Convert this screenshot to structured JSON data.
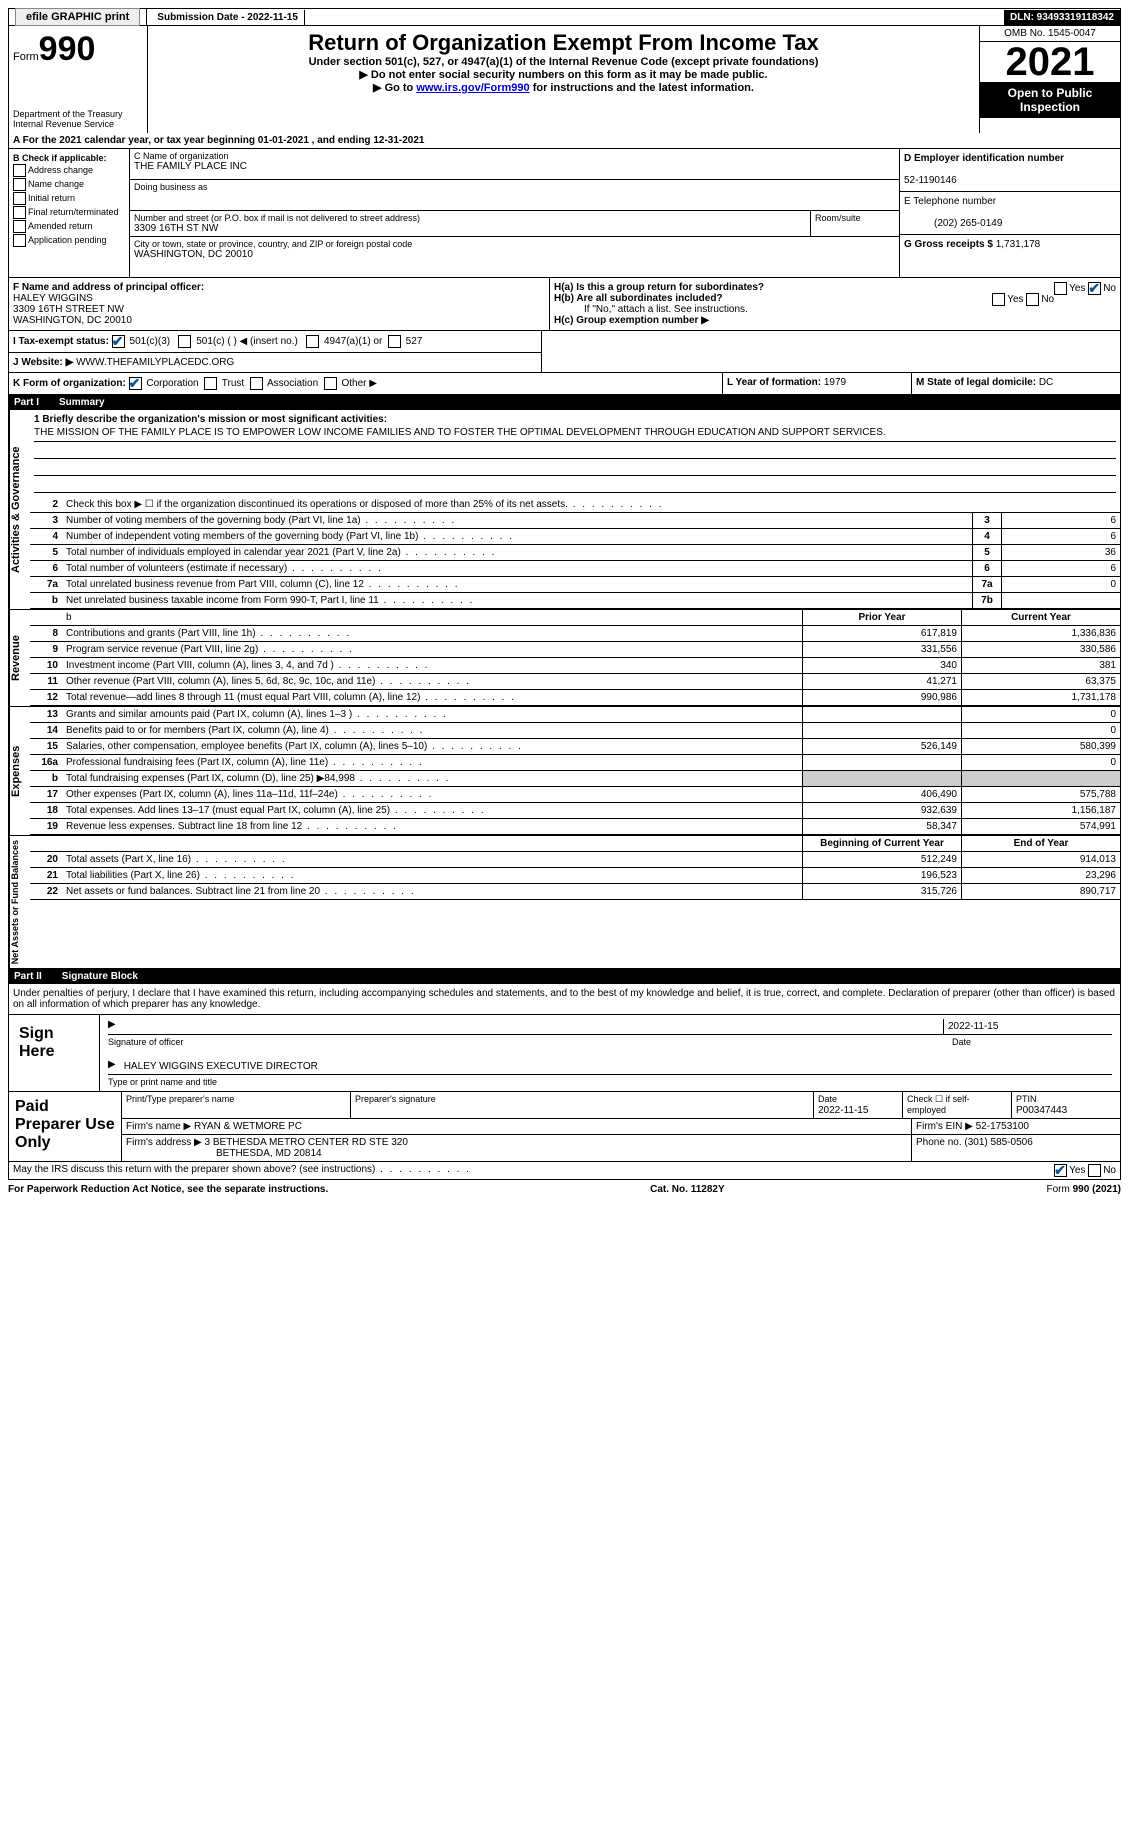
{
  "colors": {
    "text": "#000000",
    "bg": "#ffffff",
    "link": "#0000cc",
    "header_bg": "#000000",
    "header_fg": "#ffffff",
    "check": "#0b5394",
    "shade": "#cccccc"
  },
  "top": {
    "efile": "efile GRAPHIC print",
    "submission": "Submission Date - 2022-11-15",
    "dln": "DLN: 93493319118342"
  },
  "header": {
    "form_prefix": "Form",
    "form_number": "990",
    "dept": "Department of the Treasury",
    "irs": "Internal Revenue Service",
    "title": "Return of Organization Exempt From Income Tax",
    "sub1": "Under section 501(c), 527, or 4947(a)(1) of the Internal Revenue Code (except private foundations)",
    "sub2": "▶ Do not enter social security numbers on this form as it may be made public.",
    "sub3_prefix": "▶ Go to ",
    "sub3_link": "www.irs.gov/Form990",
    "sub3_suffix": " for instructions and the latest information.",
    "omb": "OMB No. 1545-0047",
    "year": "2021",
    "open": "Open to Public Inspection"
  },
  "lineA": "A For the 2021 calendar year, or tax year beginning 01-01-2021   , and ending 12-31-2021",
  "boxB": {
    "label": "B Check if applicable:",
    "items": [
      "Address change",
      "Name change",
      "Initial return",
      "Final return/terminated",
      "Amended return",
      "Application pending"
    ]
  },
  "boxC": {
    "name_lbl": "C Name of organization",
    "name": "THE FAMILY PLACE INC",
    "dba_lbl": "Doing business as",
    "dba": "",
    "street_lbl": "Number and street (or P.O. box if mail is not delivered to street address)",
    "street": "3309 16TH ST NW",
    "room_lbl": "Room/suite",
    "city_lbl": "City or town, state or province, country, and ZIP or foreign postal code",
    "city": "WASHINGTON, DC  20010"
  },
  "boxD": {
    "ein_lbl": "D Employer identification number",
    "ein": "52-1190146",
    "phone_lbl": "E Telephone number",
    "phone": "(202) 265-0149",
    "gross_lbl": "G Gross receipts $",
    "gross": "1,731,178"
  },
  "boxF": {
    "lbl": "F Name and address of principal officer:",
    "name": "HALEY WIGGINS",
    "addr1": "3309 16TH STREET NW",
    "addr2": "WASHINGTON, DC  20010"
  },
  "boxH": {
    "ha": "H(a)  Is this a group return for subordinates?",
    "ha_no": true,
    "hb": "H(b)  Are all subordinates included?",
    "hb_note": "If \"No,\" attach a list. See instructions.",
    "hc": "H(c)  Group exemption number ▶"
  },
  "lineI": {
    "lbl": "I    Tax-exempt status:",
    "opt1": "501(c)(3)",
    "opt2": "501(c) (  ) ◀ (insert no.)",
    "opt3": "4947(a)(1) or",
    "opt4": "527",
    "checked": 1
  },
  "lineJ": {
    "lbl": "J    Website: ▶",
    "val": "WWW.THEFAMILYPLACEDC.ORG"
  },
  "lineK": {
    "lbl": "K Form of organization:",
    "opts": [
      "Corporation",
      "Trust",
      "Association",
      "Other ▶"
    ],
    "checked": 0
  },
  "lineL": {
    "lbl": "L Year of formation:",
    "val": "1979"
  },
  "lineM": {
    "lbl": "M State of legal domicile:",
    "val": "DC"
  },
  "part1": {
    "header": "Part I",
    "title": "Summary"
  },
  "mission": {
    "lbl": "1   Briefly describe the organization's mission or most significant activities:",
    "text": "THE MISSION OF THE FAMILY PLACE IS TO EMPOWER LOW INCOME FAMILIES AND TO FOSTER THE OPTIMAL DEVELOPMENT THROUGH EDUCATION AND SUPPORT SERVICES."
  },
  "gov_label": "Activities & Governance",
  "gov_lines": [
    {
      "n": "2",
      "t": "Check this box ▶ ☐ if the organization discontinued its operations or disposed of more than 25% of its net assets.",
      "box": "",
      "val": ""
    },
    {
      "n": "3",
      "t": "Number of voting members of the governing body (Part VI, line 1a)",
      "box": "3",
      "val": "6"
    },
    {
      "n": "4",
      "t": "Number of independent voting members of the governing body (Part VI, line 1b)",
      "box": "4",
      "val": "6"
    },
    {
      "n": "5",
      "t": "Total number of individuals employed in calendar year 2021 (Part V, line 2a)",
      "box": "5",
      "val": "36"
    },
    {
      "n": "6",
      "t": "Total number of volunteers (estimate if necessary)",
      "box": "6",
      "val": "6"
    },
    {
      "n": "7a",
      "t": "Total unrelated business revenue from Part VIII, column (C), line 12",
      "box": "7a",
      "val": "0"
    },
    {
      "n": "b",
      "t": "Net unrelated business taxable income from Form 990-T, Part I, line 11",
      "box": "7b",
      "val": ""
    }
  ],
  "rev_label": "Revenue",
  "rev_header": {
    "prior": "Prior Year",
    "curr": "Current Year"
  },
  "rev_lines": [
    {
      "n": "8",
      "t": "Contributions and grants (Part VIII, line 1h)",
      "p": "617,819",
      "c": "1,336,836"
    },
    {
      "n": "9",
      "t": "Program service revenue (Part VIII, line 2g)",
      "p": "331,556",
      "c": "330,586"
    },
    {
      "n": "10",
      "t": "Investment income (Part VIII, column (A), lines 3, 4, and 7d )",
      "p": "340",
      "c": "381"
    },
    {
      "n": "11",
      "t": "Other revenue (Part VIII, column (A), lines 5, 6d, 8c, 9c, 10c, and 11e)",
      "p": "41,271",
      "c": "63,375"
    },
    {
      "n": "12",
      "t": "Total revenue—add lines 8 through 11 (must equal Part VIII, column (A), line 12)",
      "p": "990,986",
      "c": "1,731,178"
    }
  ],
  "exp_label": "Expenses",
  "exp_lines": [
    {
      "n": "13",
      "t": "Grants and similar amounts paid (Part IX, column (A), lines 1–3 )",
      "p": "",
      "c": "0"
    },
    {
      "n": "14",
      "t": "Benefits paid to or for members (Part IX, column (A), line 4)",
      "p": "",
      "c": "0"
    },
    {
      "n": "15",
      "t": "Salaries, other compensation, employee benefits (Part IX, column (A), lines 5–10)",
      "p": "526,149",
      "c": "580,399"
    },
    {
      "n": "16a",
      "t": "Professional fundraising fees (Part IX, column (A), line 11e)",
      "p": "",
      "c": "0"
    },
    {
      "n": "b",
      "t": "Total fundraising expenses (Part IX, column (D), line 25) ▶84,998",
      "p": "shade",
      "c": "shade"
    },
    {
      "n": "17",
      "t": "Other expenses (Part IX, column (A), lines 11a–11d, 11f–24e)",
      "p": "406,490",
      "c": "575,788"
    },
    {
      "n": "18",
      "t": "Total expenses. Add lines 13–17 (must equal Part IX, column (A), line 25)",
      "p": "932,639",
      "c": "1,156,187"
    },
    {
      "n": "19",
      "t": "Revenue less expenses. Subtract line 18 from line 12",
      "p": "58,347",
      "c": "574,991"
    }
  ],
  "net_label": "Net Assets or Fund Balances",
  "net_header": {
    "prior": "Beginning of Current Year",
    "curr": "End of Year"
  },
  "net_lines": [
    {
      "n": "20",
      "t": "Total assets (Part X, line 16)",
      "p": "512,249",
      "c": "914,013"
    },
    {
      "n": "21",
      "t": "Total liabilities (Part X, line 26)",
      "p": "196,523",
      "c": "23,296"
    },
    {
      "n": "22",
      "t": "Net assets or fund balances. Subtract line 21 from line 20",
      "p": "315,726",
      "c": "890,717"
    }
  ],
  "part2": {
    "header": "Part II",
    "title": "Signature Block"
  },
  "penalties": "Under penalties of perjury, I declare that I have examined this return, including accompanying schedules and statements, and to the best of my knowledge and belief, it is true, correct, and complete. Declaration of preparer (other than officer) is based on all information of which preparer has any knowledge.",
  "sign": {
    "here": "Sign Here",
    "sig_lbl": "Signature of officer",
    "date": "2022-11-15",
    "date_lbl": "Date",
    "name": "HALEY WIGGINS EXECUTIVE DIRECTOR",
    "name_lbl": "Type or print name and title"
  },
  "paid": {
    "here": "Paid Preparer Use Only",
    "r1": {
      "c1": "Print/Type preparer's name",
      "c2": "Preparer's signature",
      "c3": "Date",
      "c3v": "2022-11-15",
      "c4": "Check ☐ if self-employed",
      "c5": "PTIN",
      "c5v": "P00347443"
    },
    "r2": {
      "c1": "Firm's name    ▶",
      "c1v": "RYAN & WETMORE PC",
      "c2": "Firm's EIN ▶",
      "c2v": "52-1753100"
    },
    "r3": {
      "c1": "Firm's address ▶",
      "c1v": "3 BETHESDA METRO CENTER RD STE 320",
      "c1v2": "BETHESDA, MD  20814",
      "c2": "Phone no.",
      "c2v": "(301) 585-0506"
    }
  },
  "discuss": {
    "t": "May the IRS discuss this return with the preparer shown above? (see instructions)",
    "yes": true
  },
  "footer": {
    "left": "For Paperwork Reduction Act Notice, see the separate instructions.",
    "mid": "Cat. No. 11282Y",
    "right": "Form 990 (2021)"
  }
}
